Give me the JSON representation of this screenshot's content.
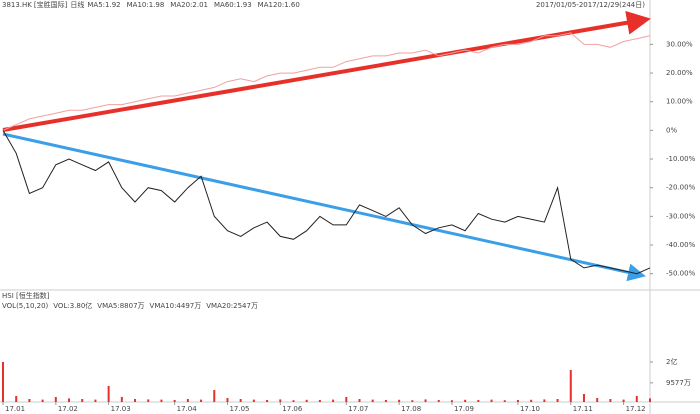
{
  "chart_data": {
    "type": "line",
    "title": "3813.HK",
    "stock_name": "[宝胜国际]",
    "period": "日线",
    "indicators": [
      {
        "label": "MA5:1.92",
        "color": "#e8302a"
      },
      {
        "label": "MA10:1.98",
        "color": "#3a7be0"
      },
      {
        "label": "MA20:2.01",
        "color": "#2255cc"
      },
      {
        "label": "MA60:1.93",
        "color": "#33bbcc"
      },
      {
        "label": "MA120:1.60",
        "color": "#33aa44"
      }
    ],
    "date_range": "2017/01/05-2017/12/29(244日)",
    "categories": [
      "17.01",
      null,
      null,
      null,
      "17.02",
      null,
      null,
      null,
      "17.03",
      null,
      null,
      null,
      null,
      "17.04",
      null,
      null,
      null,
      "17.05",
      null,
      null,
      null,
      "17.06",
      null,
      null,
      null,
      null,
      "17.07",
      null,
      null,
      null,
      "17.08",
      null,
      null,
      null,
      "17.09",
      null,
      null,
      null,
      null,
      "17.10",
      null,
      null,
      null,
      "17.11",
      null,
      null,
      null,
      "17.12",
      null,
      null
    ],
    "series": [
      {
        "name": "3813.HK",
        "color": "#222222",
        "values": [
          0,
          -8,
          -22,
          -20,
          -12,
          -10,
          -12,
          -14,
          -11,
          -20,
          -25,
          -20,
          -21,
          -25,
          -20,
          -16,
          -30,
          -35,
          -37,
          -34,
          -32,
          -37,
          -38,
          -35,
          -30,
          -33,
          -33,
          -26,
          -28,
          -30,
          -27,
          -33,
          -36,
          -34,
          -33,
          -35,
          -29,
          -31,
          -32,
          -30,
          -31,
          -32,
          -20,
          -45,
          -48,
          -47,
          -48,
          -49,
          -50,
          -48
        ]
      },
      {
        "name": "HSI",
        "color": "#f0a0a0",
        "values": [
          0,
          2,
          4,
          5,
          6,
          7,
          7,
          8,
          9,
          9,
          10,
          11,
          12,
          12,
          13,
          14,
          15,
          17,
          18,
          17,
          19,
          20,
          20,
          21,
          22,
          22,
          24,
          25,
          26,
          26,
          27,
          27,
          28,
          26,
          27,
          28,
          27,
          29,
          30,
          30,
          31,
          33,
          33,
          34,
          30,
          30,
          29,
          31,
          32,
          33
        ]
      }
    ],
    "ylim": [
      -55,
      42
    ],
    "yticks": [
      {
        "value": 30,
        "label": "30.00%"
      },
      {
        "value": 20,
        "label": "20.00%"
      },
      {
        "value": 10,
        "label": "10.00%"
      },
      {
        "value": 0,
        "label": "0%"
      },
      {
        "value": -10,
        "label": "-10.00%"
      },
      {
        "value": -20,
        "label": "-20.00%"
      },
      {
        "value": -30,
        "label": "-30.00%"
      },
      {
        "value": -40,
        "label": "-40.00%"
      },
      {
        "value": -50,
        "label": "-50.00%"
      }
    ],
    "lower_title": "HSI [恒生指数]",
    "volume_indicators": [
      {
        "label": "VOL(5,10,20)",
        "color": "#444444"
      },
      {
        "label": "VOL:3.80亿",
        "color": "#e8302a"
      },
      {
        "label": "VMA5:8807万",
        "color": "#e8302a"
      },
      {
        "label": "VMA10:4497万",
        "color": "#33aa44"
      },
      {
        "label": "VMA20:2547万",
        "color": "#444444"
      }
    ],
    "volume": {
      "color": "#e8302a",
      "values": [
        20000,
        3000,
        1500,
        1200,
        2500,
        1800,
        1500,
        1200,
        8000,
        2500,
        1500,
        1300,
        1200,
        1000,
        1500,
        1200,
        6000,
        2000,
        1500,
        1200,
        1000,
        1300,
        900,
        1100,
        1000,
        1200,
        2500,
        1500,
        1200,
        1000,
        1100,
        900,
        1300,
        1000,
        900,
        1100,
        1000,
        1200,
        900,
        1000,
        1100,
        1300,
        1500,
        16000,
        4000,
        2000,
        1500,
        1200,
        3000,
        1800
      ],
      "ylim": [
        0,
        21000
      ],
      "yticks": [
        {
          "value": 20000,
          "label": "2亿"
        },
        {
          "value": 9577,
          "label": "9577万"
        }
      ]
    }
  }
}
